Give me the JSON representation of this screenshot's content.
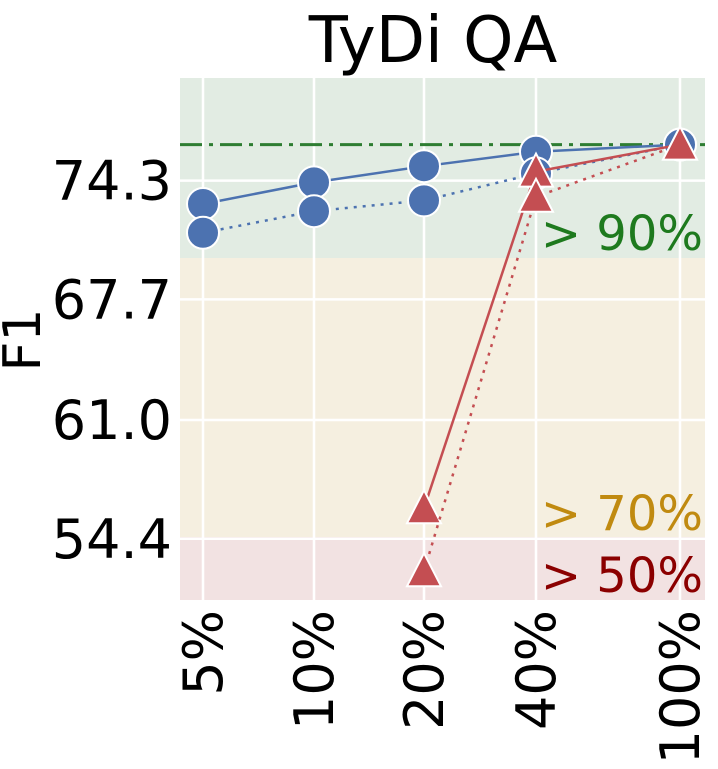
{
  "chart_data": {
    "type": "line",
    "title": "TyDi QA",
    "xlabel": "",
    "ylabel": "F1",
    "categories": [
      "5%",
      "10%",
      "20%",
      "40%",
      "100%"
    ],
    "yticks": [
      "74.3",
      "67.7",
      "61.0",
      "54.4"
    ],
    "ytick_values": [
      74.3,
      67.7,
      61.0,
      54.4
    ],
    "ylim": [
      51.0,
      80.0
    ],
    "grid": true,
    "reference_line": {
      "value": 76.3,
      "color": "#2e7d32",
      "style": "dash-dot"
    },
    "bands": [
      {
        "label": "> 90%",
        "from": 70.0,
        "to": 80.0,
        "fill": "#e2ece3",
        "text_color": "#1e7a1e"
      },
      {
        "label": "> 70%",
        "from": 54.5,
        "to": 70.0,
        "fill": "#f5efe0",
        "text_color": "#c08a10"
      },
      {
        "label": "> 50%",
        "from": 51.0,
        "to": 54.5,
        "fill": "#f2e2e2",
        "text_color": "#8b0000"
      }
    ],
    "series": [
      {
        "color": "#4c72b0",
        "marker": "circle",
        "dash": false,
        "values": [
          73.0,
          74.2,
          75.1,
          75.9,
          76.3
        ]
      },
      {
        "color": "#4c72b0",
        "marker": "circle",
        "dash": true,
        "values": [
          71.4,
          72.6,
          73.2,
          74.7,
          76.3
        ]
      },
      {
        "color": "#c44e52",
        "marker": "triangle",
        "dash": false,
        "values": [
          null,
          null,
          56.1,
          74.8,
          76.3
        ]
      },
      {
        "color": "#c44e52",
        "marker": "triangle",
        "dash": true,
        "values": [
          null,
          null,
          52.6,
          73.4,
          76.3
        ]
      }
    ]
  }
}
